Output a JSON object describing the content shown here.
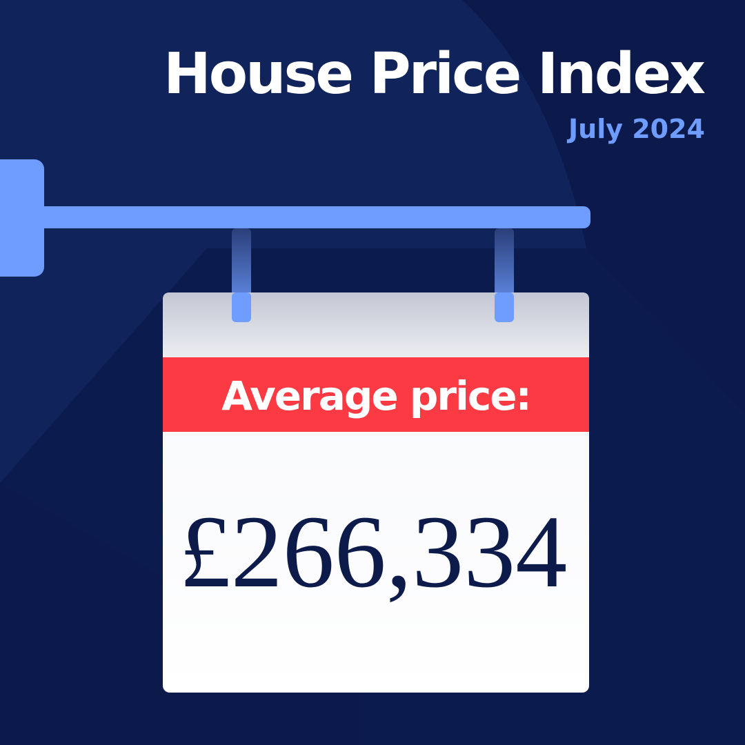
{
  "header": {
    "title": "House Price Index",
    "subtitle": "July 2024"
  },
  "sign": {
    "label": "Average price:",
    "price": "£266,334"
  }
}
